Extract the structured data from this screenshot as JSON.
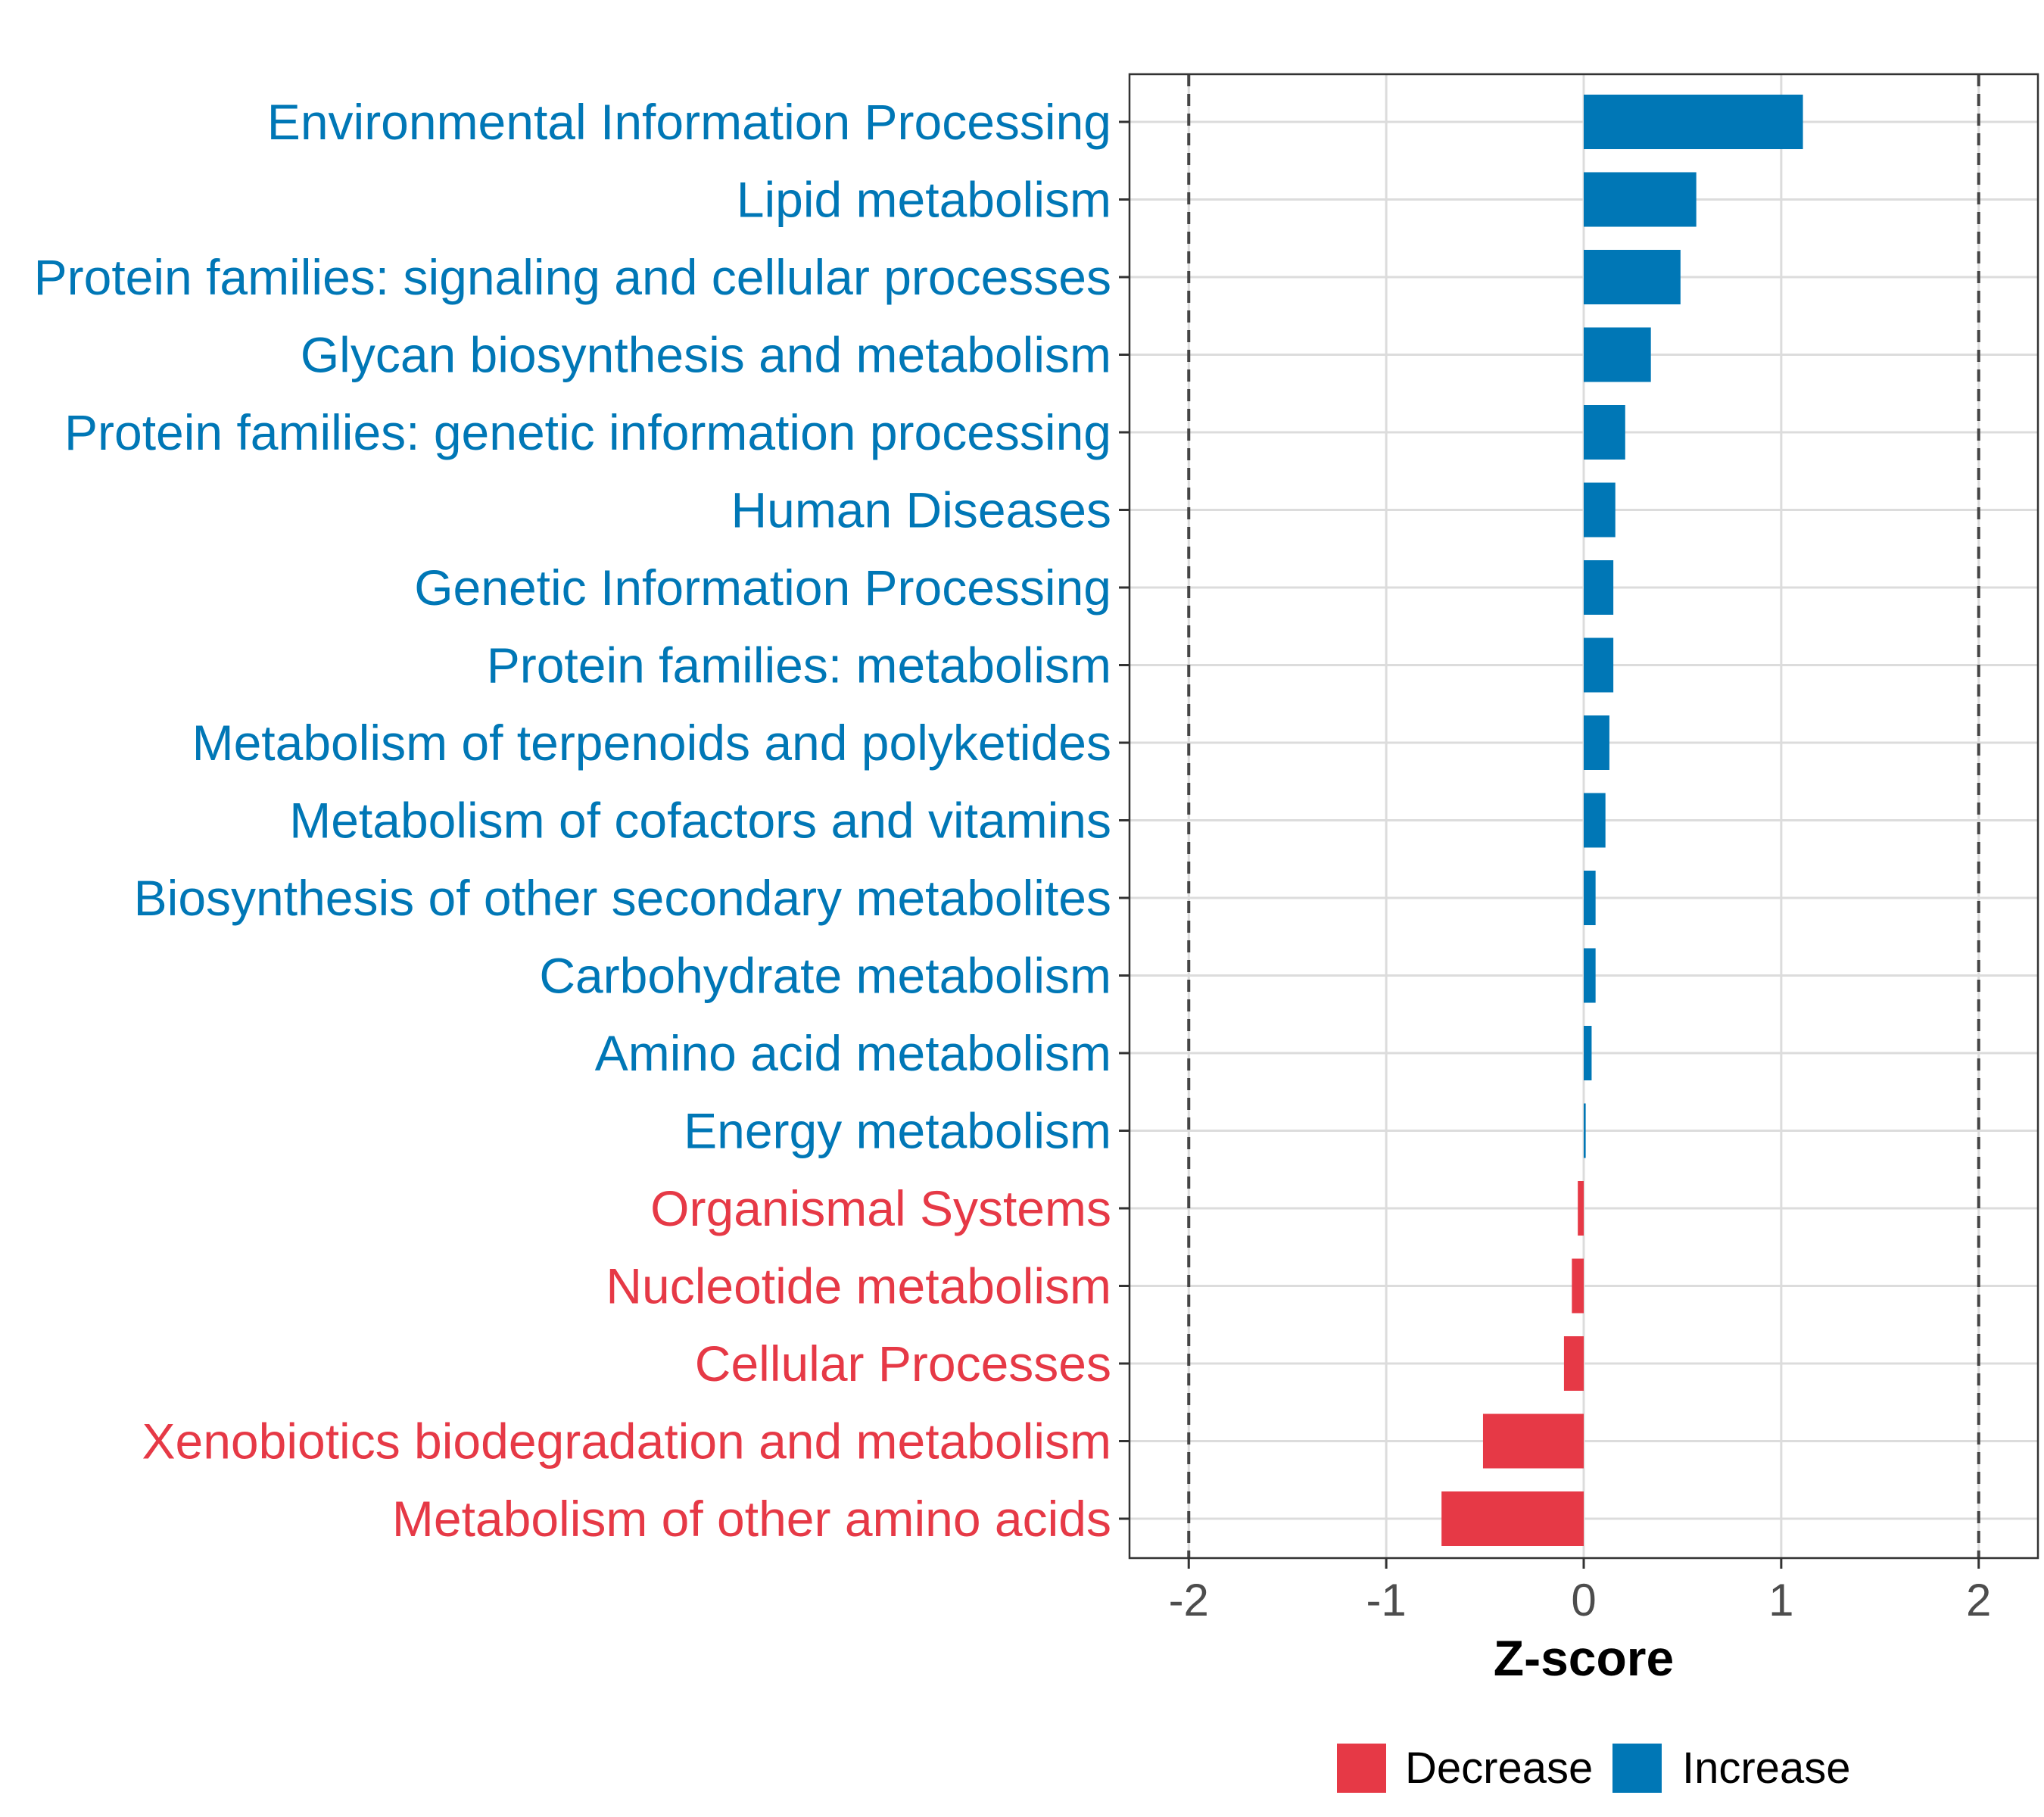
{
  "chart_data": {
    "type": "bar",
    "orientation": "horizontal",
    "title": "",
    "xlabel": "Z-score",
    "ylabel": "",
    "xlim": [
      -2.3,
      2.3
    ],
    "xticks": [
      -2,
      -1,
      0,
      1,
      2
    ],
    "xtick_labels": [
      "-2",
      "-1",
      "0",
      "1",
      "2"
    ],
    "reference_lines": [
      -2,
      2
    ],
    "grid": true,
    "categories": [
      "Environmental Information Processing",
      "Lipid metabolism",
      "Protein families: signaling and cellular processes",
      "Glycan biosynthesis and metabolism",
      "Protein families: genetic information processing",
      "Human Diseases",
      "Genetic Information Processing",
      "Protein families: metabolism",
      "Metabolism of terpenoids and polyketides",
      "Metabolism of cofactors and vitamins",
      "Biosynthesis of other secondary metabolites",
      "Carbohydrate metabolism",
      "Amino acid metabolism",
      "Energy metabolism",
      "Organismal Systems",
      "Nucleotide metabolism",
      "Cellular Processes",
      "Xenobiotics biodegradation and metabolism",
      "Metabolism of other amino acids"
    ],
    "values": [
      1.11,
      0.57,
      0.49,
      0.34,
      0.21,
      0.16,
      0.15,
      0.15,
      0.13,
      0.11,
      0.06,
      0.06,
      0.04,
      0.01,
      -0.03,
      -0.06,
      -0.1,
      -0.51,
      -0.72
    ],
    "groups": [
      "Increase",
      "Increase",
      "Increase",
      "Increase",
      "Increase",
      "Increase",
      "Increase",
      "Increase",
      "Increase",
      "Increase",
      "Increase",
      "Increase",
      "Increase",
      "Increase",
      "Decrease",
      "Decrease",
      "Decrease",
      "Decrease",
      "Decrease"
    ],
    "legend": {
      "position": "bottom",
      "entries": [
        {
          "label": "Decrease",
          "color": "#e63946"
        },
        {
          "label": "Increase",
          "color": "#0077b6"
        }
      ]
    },
    "colors": {
      "Decrease": "#e63946",
      "Increase": "#0077b6"
    }
  }
}
